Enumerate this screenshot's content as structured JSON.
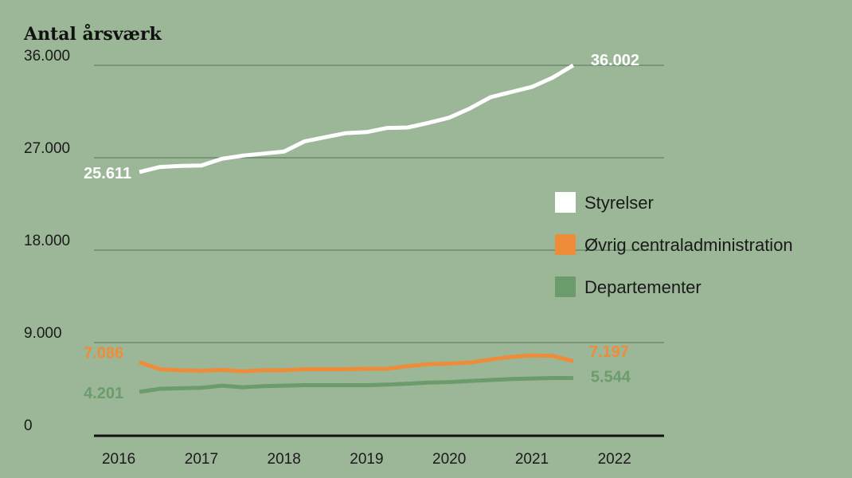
{
  "chart_data": {
    "type": "line",
    "title": "Antal årsværk",
    "ylim": [
      0,
      36000
    ],
    "yticks": [
      {
        "value": 0,
        "label": "0"
      },
      {
        "value": 9000,
        "label": "9.000"
      },
      {
        "value": 18000,
        "label": "18.000"
      },
      {
        "value": 27000,
        "label": "27.000"
      },
      {
        "value": 36000,
        "label": "36.000"
      }
    ],
    "xlim": [
      2015.7,
      2022.6
    ],
    "xticks": [
      {
        "value": 2016,
        "label": "2016"
      },
      {
        "value": 2017,
        "label": "2017"
      },
      {
        "value": 2018,
        "label": "2018"
      },
      {
        "value": 2019,
        "label": "2019"
      },
      {
        "value": 2020,
        "label": "2020"
      },
      {
        "value": 2021,
        "label": "2021"
      },
      {
        "value": 2022,
        "label": "2022"
      }
    ],
    "series": [
      {
        "name": "Styrelser",
        "color": "#ffffff",
        "start_label": "25.611",
        "end_label": "36.002",
        "x": [
          2016.25,
          2016.5,
          2016.75,
          2017.0,
          2017.25,
          2017.5,
          2017.75,
          2018.0,
          2018.25,
          2018.5,
          2018.75,
          2019.0,
          2019.25,
          2019.5,
          2019.75,
          2020.0,
          2020.25,
          2020.5,
          2020.75,
          2021.0,
          2021.25,
          2021.5
        ],
        "values": [
          25611,
          26100,
          26200,
          26250,
          26900,
          27200,
          27400,
          27600,
          28600,
          29000,
          29400,
          29500,
          29900,
          29950,
          30400,
          30900,
          31800,
          32900,
          33400,
          33900,
          34800,
          36002
        ]
      },
      {
        "name": "Øvrig centraladministration",
        "color": "#ee8c3a",
        "start_label": "7.086",
        "end_label": "7.197",
        "x": [
          2016.25,
          2016.5,
          2016.75,
          2017.0,
          2017.25,
          2017.5,
          2017.75,
          2018.0,
          2018.25,
          2018.5,
          2018.75,
          2019.0,
          2019.25,
          2019.5,
          2019.75,
          2020.0,
          2020.25,
          2020.5,
          2020.75,
          2021.0,
          2021.25,
          2021.5
        ],
        "values": [
          7086,
          6400,
          6300,
          6250,
          6350,
          6200,
          6300,
          6300,
          6400,
          6400,
          6400,
          6450,
          6450,
          6700,
          6900,
          6950,
          7050,
          7350,
          7600,
          7750,
          7700,
          7197
        ]
      },
      {
        "name": "Departementer",
        "color": "#6d9c6c",
        "start_label": "4.201",
        "end_label": "5.544",
        "x": [
          2016.25,
          2016.5,
          2016.75,
          2017.0,
          2017.25,
          2017.5,
          2017.75,
          2018.0,
          2018.25,
          2018.5,
          2018.75,
          2019.0,
          2019.25,
          2019.5,
          2019.75,
          2020.0,
          2020.25,
          2020.5,
          2020.75,
          2021.0,
          2021.25,
          2021.5
        ],
        "values": [
          4201,
          4500,
          4550,
          4600,
          4800,
          4650,
          4750,
          4800,
          4850,
          4850,
          4850,
          4850,
          4900,
          5000,
          5100,
          5150,
          5250,
          5350,
          5450,
          5500,
          5544,
          5544
        ]
      }
    ],
    "legend": {
      "position": "right",
      "items": [
        {
          "label": "Styrelser",
          "color": "#ffffff"
        },
        {
          "label": "Øvrig centraladministration",
          "color": "#ee8c3a"
        },
        {
          "label": "Departementer",
          "color": "#6d9c6c"
        }
      ]
    },
    "grid": true
  }
}
